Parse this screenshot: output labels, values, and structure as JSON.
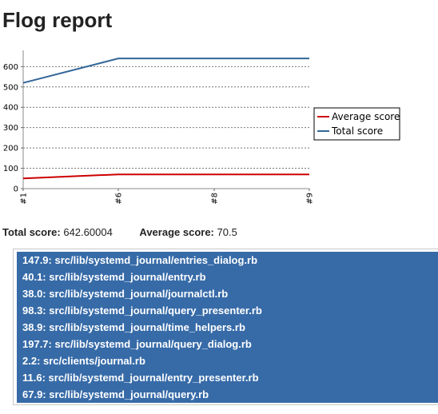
{
  "page": {
    "title": "Flog report"
  },
  "chart_data": {
    "type": "line",
    "categories": [
      "#1",
      "#6",
      "#8",
      "#9"
    ],
    "series": [
      {
        "name": "Average score",
        "values": [
          50,
          70,
          70,
          70
        ],
        "color": "#cc0000"
      },
      {
        "name": "Total score",
        "values": [
          520,
          640,
          640,
          640
        ],
        "color": "#336699"
      }
    ],
    "yticks": [
      "0",
      "100",
      "200",
      "300",
      "400",
      "500",
      "600"
    ],
    "ylim": [
      0,
      680
    ],
    "grid": true,
    "legend_position": "right"
  },
  "summary": {
    "total_label": "Total score:",
    "total_value": "642.60004",
    "average_label": "Average score:",
    "average_value": "70.5"
  },
  "files": [
    {
      "text": "147.9: src/lib/systemd_journal/entries_dialog.rb"
    },
    {
      "text": "40.1: src/lib/systemd_journal/entry.rb"
    },
    {
      "text": "38.0: src/lib/systemd_journal/journalctl.rb"
    },
    {
      "text": "98.3: src/lib/systemd_journal/query_presenter.rb"
    },
    {
      "text": "38.9: src/lib/systemd_journal/time_helpers.rb"
    },
    {
      "text": "197.7: src/lib/systemd_journal/query_dialog.rb"
    },
    {
      "text": "2.2: src/clients/journal.rb"
    },
    {
      "text": "11.6: src/lib/systemd_journal/entry_presenter.rb"
    },
    {
      "text": "67.9: src/lib/systemd_journal/query.rb"
    }
  ]
}
